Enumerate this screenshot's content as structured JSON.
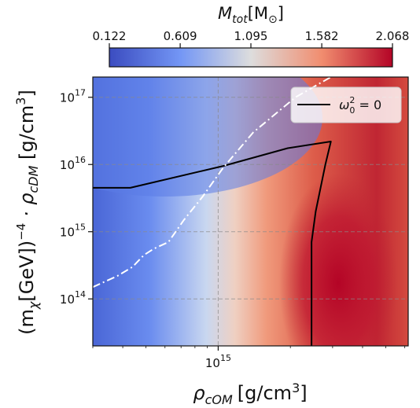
{
  "chart_data": {
    "type": "heatmap",
    "title": "",
    "colorbar": {
      "label_main": "M",
      "label_sub": "tot",
      "label_unit": "[M",
      "label_unit_sub": "⊙",
      "label_close": "]",
      "ticks": [
        "0.122",
        "0.609",
        "1.095",
        "1.582",
        "2.068"
      ],
      "range": [
        0.122,
        2.068
      ],
      "colormap": "coolwarm"
    },
    "xaxis": {
      "label_main": "ρ",
      "label_sub": "cOM",
      "label_unit": "[g/cm",
      "label_unit_sup": "3",
      "label_close": "]",
      "scale": "log",
      "range": [
        300000000000000.0,
        6200000000000000.0
      ],
      "tick_labels": [
        {
          "base": "10",
          "exp": "15",
          "value": 1000000000000000.0
        }
      ]
    },
    "yaxis": {
      "label_open": "(m",
      "label_open_sub": "χ",
      "label_gev": "[GeV])",
      "label_gev_sup": "−4",
      "label_dot": " · ρ",
      "label_sub": "cDM",
      "label_unit": " [g/cm",
      "label_unit_sup": "3",
      "label_close": "]",
      "scale": "log",
      "range": [
        20000000000000.0,
        2e+17
      ],
      "tick_labels": [
        {
          "base": "10",
          "exp": "14",
          "value": 100000000000000.0
        },
        {
          "base": "10",
          "exp": "15",
          "value": 1000000000000000.0
        },
        {
          "base": "10",
          "exp": "16",
          "value": 1e+16
        },
        {
          "base": "10",
          "exp": "17",
          "value": 1e+17
        }
      ]
    },
    "grid": true,
    "legend": {
      "position": "top-right",
      "label_main": "ω",
      "label_sup": "2",
      "label_sub": "0",
      "label_eq": " = 0"
    },
    "series": [
      {
        "name": "ω0² = 0",
        "style": "solid",
        "color": "#000000",
        "points": [
          [
            300000000000000.0,
            4500000000000000.0
          ],
          [
            430000000000000.0,
            4500000000000000.0
          ],
          [
            1050000000000000.0,
            9500000000000000.0
          ],
          [
            1950000000000000.0,
            1.75e+16
          ],
          [
            2950000000000000.0,
            2.2e+16
          ],
          [
            2800000000000000.0,
            1e+16
          ],
          [
            2550000000000000.0,
            2000000000000000.0
          ],
          [
            2450000000000000.0,
            700000000000000.0
          ],
          [
            2450000000000000.0,
            20000000000000.0
          ]
        ]
      },
      {
        "style": "dashdot",
        "color": "#ffffff",
        "points": [
          [
            300000000000000.0,
            150000000000000.0
          ],
          [
            380000000000000.0,
            220000000000000.0
          ],
          [
            440000000000000.0,
            300000000000000.0
          ],
          [
            490000000000000.0,
            450000000000000.0
          ],
          [
            540000000000000.0,
            560000000000000.0
          ],
          [
            620000000000000.0,
            700000000000000.0
          ],
          [
            720000000000000.0,
            1500000000000000.0
          ],
          [
            860000000000000.0,
            3300000000000000.0
          ],
          [
            1050000000000000.0,
            9000000000000000.0
          ],
          [
            1400000000000000.0,
            3e+16
          ],
          [
            2100000000000000.0,
            1e+17
          ],
          [
            2950000000000000.0,
            2e+17
          ]
        ]
      }
    ]
  }
}
